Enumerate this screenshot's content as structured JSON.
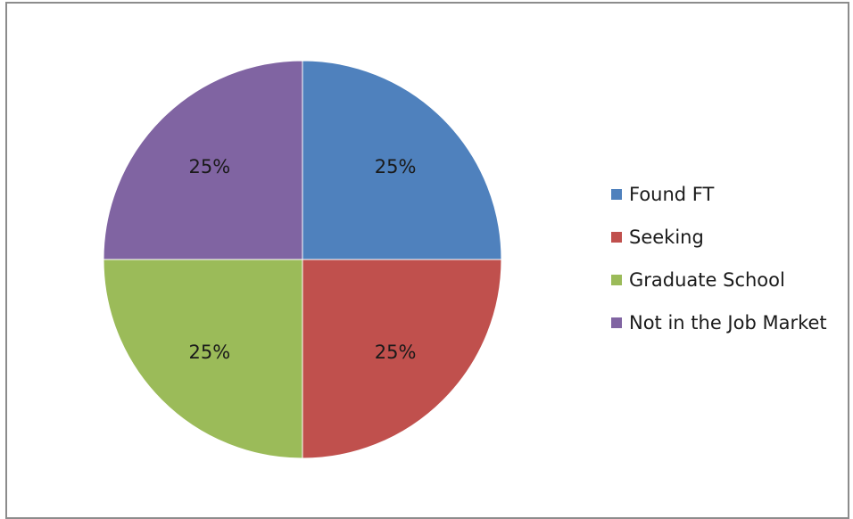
{
  "chart_data": {
    "type": "pie",
    "categories": [
      "Found FT",
      "Seeking",
      "Graduate School",
      "Not in the Job Market"
    ],
    "values": [
      25,
      25,
      25,
      25
    ],
    "labels": [
      "25%",
      "25%",
      "25%",
      "25%"
    ],
    "colors": [
      "#4F81BD",
      "#C0504D",
      "#9BBB59",
      "#8064A2"
    ],
    "legend_position": "right"
  }
}
